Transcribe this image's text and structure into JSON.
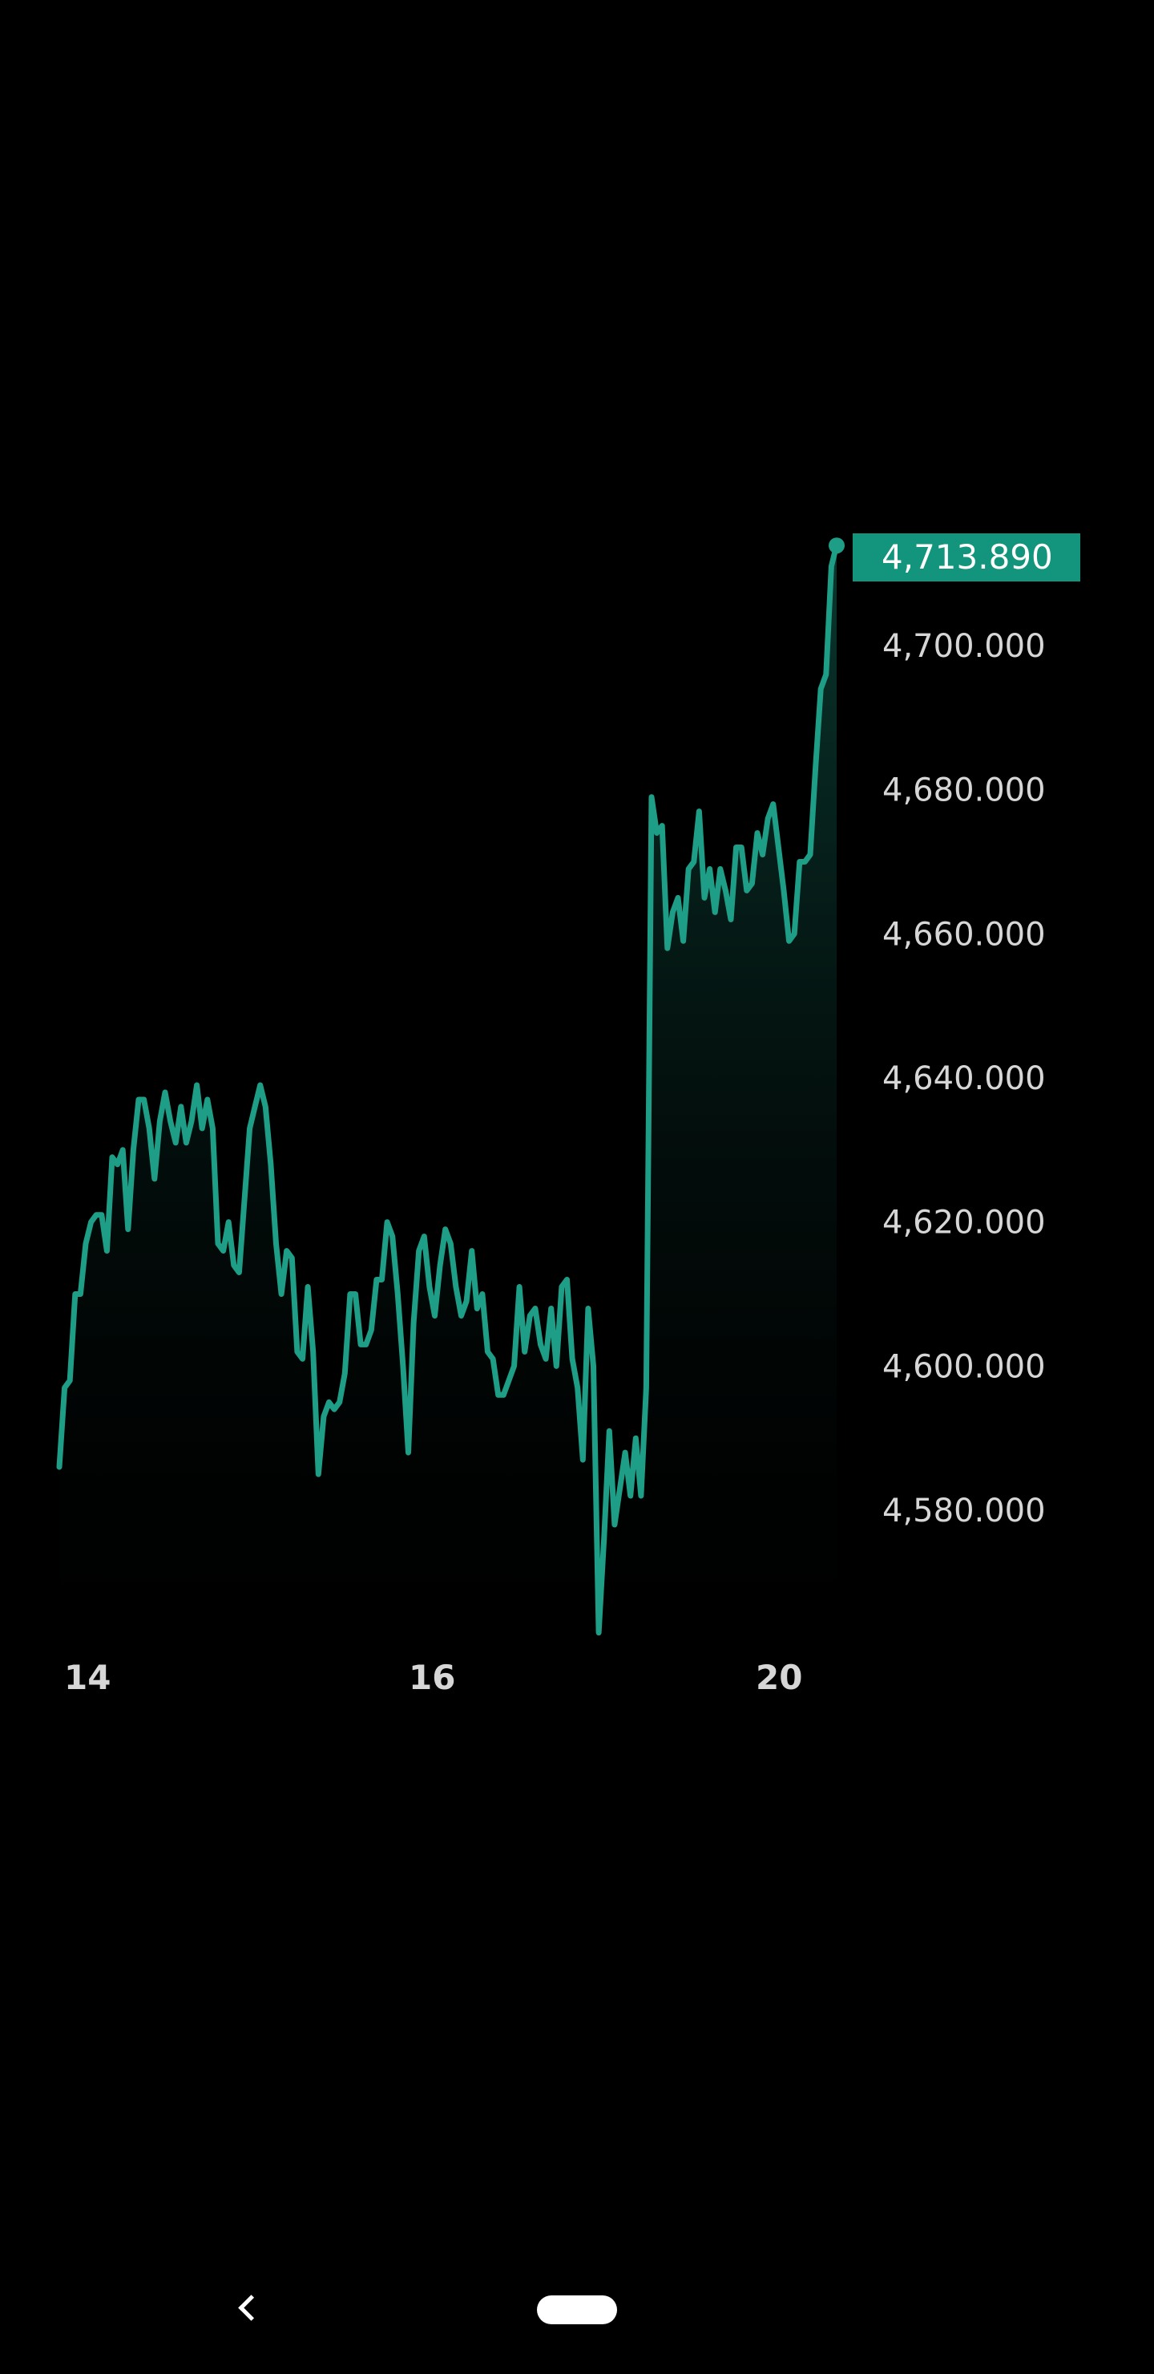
{
  "chart_data": {
    "type": "area",
    "title": "",
    "xlabel": "",
    "ylabel": "",
    "x_ticks": [
      "14",
      "16",
      "20"
    ],
    "y_ticks": [
      "4,580.000",
      "4,600.000",
      "4,620.000",
      "4,640.000",
      "4,660.000",
      "4,680.000",
      "4,700.000"
    ],
    "y_tick_values": [
      4580,
      4600,
      4620,
      4640,
      4660,
      4680,
      4700
    ],
    "ylim": [
      4563,
      4716
    ],
    "last_price_label": "4,713.890",
    "last_price": 4713.89,
    "values": [
      4586,
      4597,
      4598,
      4610,
      4610,
      4617,
      4620,
      4621,
      4621,
      4616,
      4629,
      4628,
      4630,
      4619,
      4630,
      4637,
      4637,
      4633,
      4626,
      4634,
      4638,
      4634,
      4631,
      4636,
      4631,
      4634,
      4639,
      4633,
      4637,
      4633,
      4617,
      4616,
      4620,
      4614,
      4613,
      4623,
      4633,
      4636,
      4639,
      4636,
      4628,
      4617,
      4610,
      4616,
      4615,
      4602,
      4601,
      4611,
      4602,
      4585,
      4593,
      4595,
      4594,
      4595,
      4599,
      4610,
      4610,
      4603,
      4603,
      4605,
      4612,
      4612,
      4620,
      4618,
      4610,
      4600,
      4588,
      4606,
      4616,
      4618,
      4611,
      4607,
      4614,
      4619,
      4617,
      4611,
      4607,
      4609,
      4616,
      4608,
      4610,
      4602,
      4601,
      4596,
      4596,
      4598,
      4600,
      4611,
      4602,
      4607,
      4608,
      4603,
      4601,
      4608,
      4600,
      4611,
      4612,
      4601,
      4597,
      4587,
      4608,
      4600,
      4563,
      4576,
      4591,
      4578,
      4583,
      4588,
      4582,
      4590,
      4582,
      4597,
      4679,
      4674,
      4675,
      4658,
      4663,
      4665,
      4659,
      4669,
      4670,
      4677,
      4665,
      4669,
      4663,
      4669,
      4666,
      4662,
      4672,
      4672,
      4666,
      4667,
      4674,
      4671,
      4676,
      4678,
      4672,
      4666,
      4659,
      4660,
      4670,
      4670,
      4671,
      4683,
      4694,
      4696,
      4711,
      4714
    ]
  },
  "colors": {
    "background": "#000000",
    "line": "#1e9e86",
    "area_top": "#0b3a31",
    "price_badge": "#12957c",
    "tick_text": "#d6d6d6"
  },
  "nav": {
    "back_icon": "chevron-left-icon",
    "home_icon": "pill-home-icon"
  }
}
